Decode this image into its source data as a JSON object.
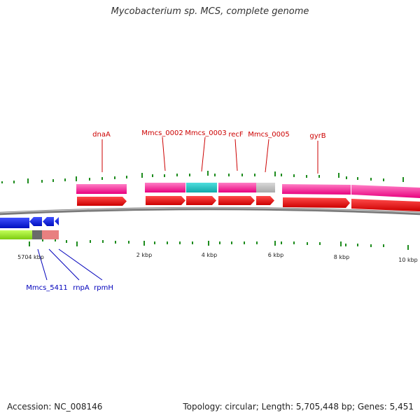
{
  "title": "Mycobacterium sp. MCS, complete genome",
  "footer": {
    "accession": "Accession: NC_008146",
    "summary": "Topology: circular; Length: 5,705,448 bp; Genes: 5,451"
  },
  "colors": {
    "forward_gene": "#ff3fa6",
    "forward_cds": "#ff0000",
    "reverse_cds": "#0b18e8",
    "reverse_gene": "#99e62e",
    "rna_gene": "#22c7c7",
    "pseudo": "#bdbdbd",
    "tick": "#1e8c1e",
    "forward_label": "#cc0000",
    "reverse_label": "#0000bb"
  },
  "coordinate_labels": [
    "5704 kbp",
    "2 kbp",
    "4 kbp",
    "6 kbp",
    "8 kbp",
    "10 kbp"
  ],
  "forward_genes": [
    {
      "id": "dnaA",
      "label": "dnaA"
    },
    {
      "id": "mmcs_0002",
      "label": "Mmcs_0002"
    },
    {
      "id": "mmcs_0003",
      "label": "Mmcs_0003"
    },
    {
      "id": "recf",
      "label": "recF"
    },
    {
      "id": "mmcs_0005",
      "label": "Mmcs_0005"
    },
    {
      "id": "gyrb",
      "label": "gyrB"
    }
  ],
  "reverse_genes": [
    {
      "id": "mmcs_5411",
      "label": "Mmcs_5411"
    },
    {
      "id": "rnpa",
      "label": "rnpA"
    },
    {
      "id": "rpmh",
      "label": "rpmH"
    }
  ]
}
